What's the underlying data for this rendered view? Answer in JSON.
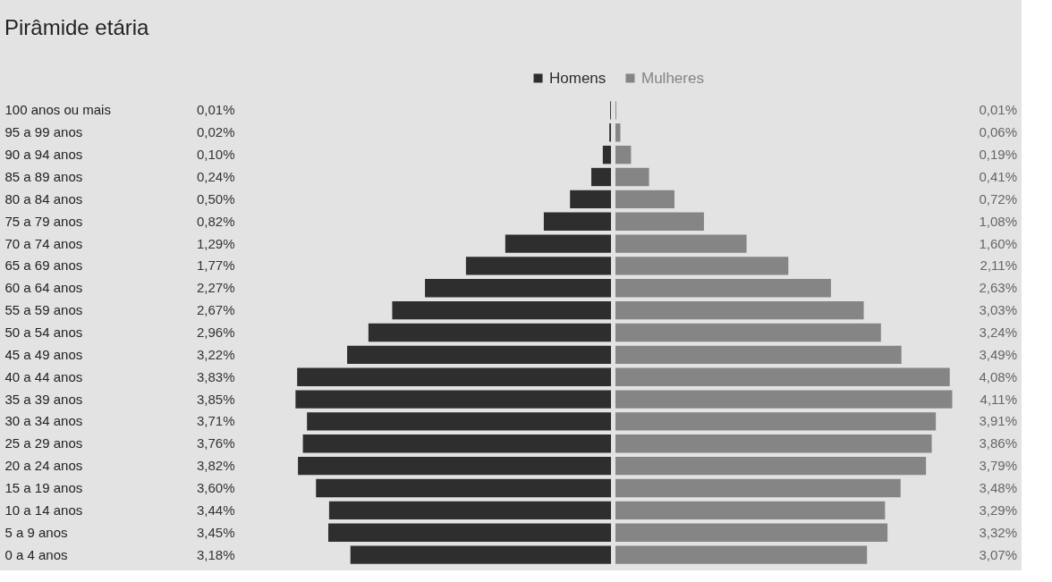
{
  "chart_data": [
    {
      "type": "bar",
      "orientation": "horizontal",
      "title": "Pirâmide etária",
      "categories": [
        "100 anos ou mais",
        "95 a 99 anos",
        "90 a 94 anos",
        "85 a 89 anos",
        "80 a 84 anos",
        "75 a 79 anos",
        "70 a 74 anos",
        "65 a 69 anos",
        "60 a 64 anos",
        "55 a 59 anos",
        "50 a 54 anos",
        "45 a 49 anos",
        "40 a 44 anos",
        "35 a 39 anos",
        "30 a 34 anos",
        "25 a 29 anos",
        "20 a 24 anos",
        "15 a 19 anos",
        "10 a 14 anos",
        "5 a 9 anos",
        "0 a 4 anos"
      ],
      "series": [
        {
          "name": "Homens",
          "color": "#2e2e2e",
          "values": [
            0.01,
            0.02,
            0.1,
            0.24,
            0.5,
            0.82,
            1.29,
            1.77,
            2.27,
            2.67,
            2.96,
            3.22,
            3.83,
            3.85,
            3.71,
            3.76,
            3.82,
            3.6,
            3.44,
            3.45,
            3.18
          ],
          "value_labels": [
            "0,01%",
            "0,02%",
            "0,10%",
            "0,24%",
            "0,50%",
            "0,82%",
            "1,29%",
            "1,77%",
            "2,27%",
            "2,67%",
            "2,96%",
            "3,22%",
            "3,83%",
            "3,85%",
            "3,71%",
            "3,76%",
            "3,82%",
            "3,60%",
            "3,44%",
            "3,45%",
            "3,18%"
          ]
        }
      ],
      "tick_labels": "y",
      "legend": "top"
    },
    {
      "type": "bar",
      "orientation": "horizontal",
      "series": [
        {
          "name": "Mulheres",
          "color": "#858585",
          "values": [
            0.01,
            0.06,
            0.19,
            0.41,
            0.72,
            1.08,
            1.6,
            2.11,
            2.63,
            3.03,
            3.24,
            3.49,
            4.08,
            4.11,
            3.91,
            3.86,
            3.79,
            3.48,
            3.29,
            3.32,
            3.07
          ],
          "value_labels": [
            "0,01%",
            "0,06%",
            "0,19%",
            "0,41%",
            "0,72%",
            "1,08%",
            "1,60%",
            "2,11%",
            "2,63%",
            "3,03%",
            "3,24%",
            "3,49%",
            "4,08%",
            "4,11%",
            "3,91%",
            "3,86%",
            "3,79%",
            "3,48%",
            "3,29%",
            "3,32%",
            "3,07%"
          ]
        }
      ],
      "tick_labels": false,
      "legend": "top"
    }
  ]
}
